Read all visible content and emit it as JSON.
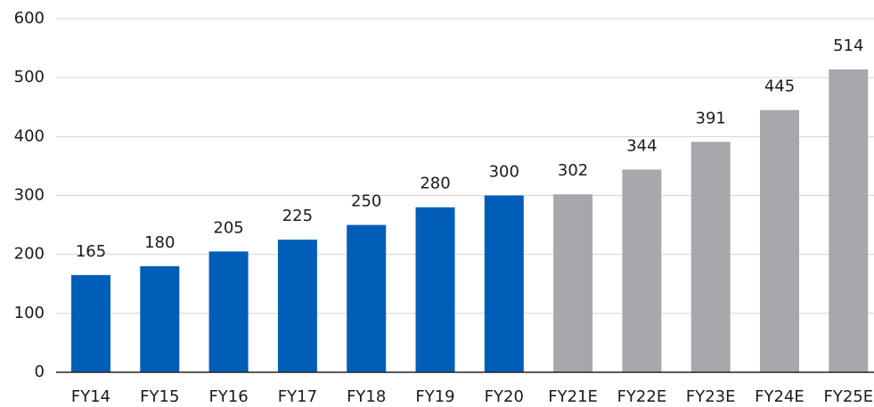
{
  "chart_data": {
    "type": "bar",
    "categories": [
      "FY14",
      "FY15",
      "FY16",
      "FY17",
      "FY18",
      "FY19",
      "FY20",
      "FY21E",
      "FY22E",
      "FY23E",
      "FY24E",
      "FY25E"
    ],
    "values": [
      165,
      180,
      205,
      225,
      250,
      280,
      300,
      302,
      344,
      391,
      445,
      514
    ],
    "colors": [
      "#005eb8",
      "#005eb8",
      "#005eb8",
      "#005eb8",
      "#005eb8",
      "#005eb8",
      "#005eb8",
      "#a7a8ab",
      "#a7a8ab",
      "#a7a8ab",
      "#a7a8ab",
      "#a7a8ab"
    ],
    "ylim": [
      0,
      600
    ],
    "yticks": [
      0,
      100,
      200,
      300,
      400,
      500,
      600
    ],
    "grid": true
  }
}
